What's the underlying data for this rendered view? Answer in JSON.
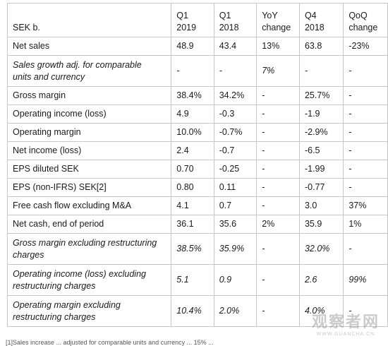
{
  "table": {
    "headers": [
      [
        "SEK b."
      ],
      [
        "Q1",
        "2019"
      ],
      [
        "Q1",
        "2018"
      ],
      [
        "YoY",
        "change"
      ],
      [
        "Q4",
        "2018"
      ],
      [
        "QoQ",
        "change"
      ]
    ],
    "rows": [
      {
        "label": [
          "Net sales"
        ],
        "italic": false,
        "values": [
          "48.9",
          "43.4",
          "13%",
          "63.8",
          "-23%"
        ]
      },
      {
        "label": [
          "Sales growth adj. for comparable",
          "units and currency"
        ],
        "italic": true,
        "values": [
          "-",
          "-",
          "7%",
          "-",
          "-"
        ]
      },
      {
        "label": [
          "Gross margin"
        ],
        "italic": false,
        "values": [
          "38.4%",
          "34.2%",
          "-",
          "25.7%",
          "-"
        ]
      },
      {
        "label": [
          "Operating income (loss)"
        ],
        "italic": false,
        "values": [
          "4.9",
          "-0.3",
          "-",
          "-1.9",
          "-"
        ]
      },
      {
        "label": [
          "Operating margin"
        ],
        "italic": false,
        "values": [
          "10.0%",
          "-0.7%",
          "-",
          "-2.9%",
          "-"
        ]
      },
      {
        "label": [
          "Net income (loss)"
        ],
        "italic": false,
        "values": [
          "2.4",
          "-0.7",
          "-",
          "-6.5",
          "-"
        ]
      },
      {
        "label": [
          "EPS diluted SEK"
        ],
        "italic": false,
        "values": [
          "0.70",
          "-0.25",
          "-",
          "-1.99",
          "-"
        ]
      },
      {
        "label": [
          "EPS (non-IFRS) SEK[2]"
        ],
        "italic": false,
        "values": [
          "0.80",
          "0.11",
          "-",
          "-0.77",
          "-"
        ]
      },
      {
        "label": [
          "Free cash flow excluding M&A"
        ],
        "italic": false,
        "values": [
          "4.1",
          "0.7",
          "-",
          "3.0",
          "37%"
        ]
      },
      {
        "label": [
          "Net cash, end of period"
        ],
        "italic": false,
        "values": [
          "36.1",
          "35.6",
          "2%",
          "35.9",
          "1%"
        ]
      },
      {
        "label": [
          "Gross margin excluding restructuring",
          "charges"
        ],
        "italic": true,
        "values": [
          "38.5%",
          "35.9%",
          "-",
          "32.0%",
          "-"
        ]
      },
      {
        "label": [
          "Operating income (loss) excluding",
          "restructuring charges"
        ],
        "italic": true,
        "values": [
          "5.1",
          "0.9",
          "-",
          "2.6",
          "99%"
        ]
      },
      {
        "label": [
          "Operating margin excluding",
          "restructuring charges"
        ],
        "italic": true,
        "values": [
          "10.4%",
          "2.0%",
          "-",
          "4.0%",
          "-"
        ]
      }
    ]
  },
  "footer": {
    "text": "[1]Sales increase ... adjusted for comparable units and currency ... 15% ..."
  },
  "watermark": {
    "text": "观察者网",
    "subtext": "WWW.GUANCHA.CN"
  }
}
